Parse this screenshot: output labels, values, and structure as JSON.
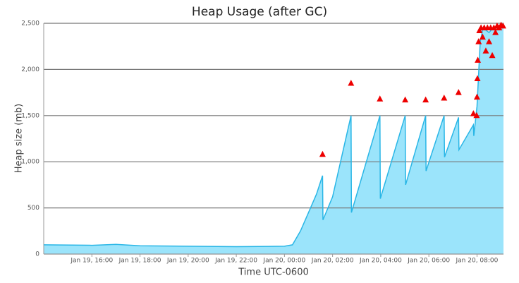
{
  "chart_data": {
    "type": "area",
    "title": "Heap Usage (after GC)",
    "y_label": "Heap size (mb)",
    "x_label": "Time UTC-0600",
    "xlim": [
      "Jan 19, 14:00",
      "Jan 20, 09:06"
    ],
    "xticks": [
      "Jan 19, 16:00",
      "Jan 19, 18:00",
      "Jan 19, 20:00",
      "Jan 19, 22:00",
      "Jan 20, 00:00",
      "Jan 20, 02:00",
      "Jan 20, 04:00",
      "Jan 20, 06:00",
      "Jan 20, 08:00"
    ],
    "ylim": [
      0,
      2500
    ],
    "yticks": [
      0,
      500,
      {
        "value": 1000,
        "label": "1,000"
      },
      {
        "value": 1500,
        "label": "1,500"
      },
      {
        "value": 2000,
        "label": "2,000"
      },
      {
        "value": 2500,
        "label": "2,500"
      }
    ],
    "grid": true,
    "series": [
      {
        "color": "#29b6e6",
        "fill": "#9be4fb",
        "x": [
          "Jan 19, 14:00",
          "Jan 19, 16:00",
          "Jan 19, 17:00",
          "Jan 19, 18:00",
          "Jan 19, 20:00",
          "Jan 19, 22:00",
          "Jan 20, 00:00",
          "Jan 20, 00:20",
          "Jan 20, 00:40",
          "Jan 20, 01:00",
          "Jan 20, 01:20",
          "Jan 20, 01:35",
          "Jan 20, 01:36",
          "Jan 20, 02:00",
          "Jan 20, 02:46",
          "Jan 20, 02:47",
          "Jan 20, 03:58",
          "Jan 20, 03:59",
          "Jan 20, 05:01",
          "Jan 20, 05:02",
          "Jan 20, 05:52",
          "Jan 20, 05:53",
          "Jan 20, 06:38",
          "Jan 20, 06:39",
          "Jan 20, 07:14",
          "Jan 20, 07:15",
          "Jan 20, 07:51",
          "Jan 20, 07:52",
          "Jan 20, 08:00",
          "Jan 20, 08:08",
          "Jan 20, 08:15",
          "Jan 20, 08:30",
          "Jan 20, 08:40",
          "Jan 20, 09:06"
        ],
        "values": [
          100,
          95,
          105,
          90,
          85,
          80,
          85,
          100,
          250,
          450,
          650,
          850,
          370,
          620,
          1500,
          450,
          1500,
          600,
          1500,
          750,
          1500,
          900,
          1500,
          1050,
          1480,
          1130,
          1400,
          1280,
          1600,
          2300,
          2450,
          2400,
          2450,
          2480
        ]
      },
      {
        "color": "#ee0000",
        "marker": "triangle",
        "x": [
          "Jan 20, 01:35",
          "Jan 20, 02:46",
          "Jan 20, 03:58",
          "Jan 20, 05:01",
          "Jan 20, 05:52",
          "Jan 20, 06:38",
          "Jan 20, 07:14",
          "Jan 20, 07:51",
          "Jan 20, 07:59",
          "Jan 20, 08:00",
          "Jan 20, 08:01",
          "Jan 20, 08:02",
          "Jan 20, 08:04",
          "Jan 20, 08:06",
          "Jan 20, 08:10",
          "Jan 20, 08:14",
          "Jan 20, 08:18",
          "Jan 20, 08:22",
          "Jan 20, 08:26",
          "Jan 20, 08:30",
          "Jan 20, 08:34",
          "Jan 20, 08:38",
          "Jan 20, 08:42",
          "Jan 20, 08:46",
          "Jan 20, 08:50",
          "Jan 20, 08:55",
          "Jan 20, 09:00",
          "Jan 20, 09:05"
        ],
        "values": [
          1080,
          1850,
          1680,
          1670,
          1670,
          1690,
          1750,
          1520,
          1500,
          1700,
          1900,
          2100,
          2300,
          2420,
          2450,
          2350,
          2450,
          2200,
          2450,
          2300,
          2450,
          2150,
          2450,
          2400,
          2470,
          2450,
          2480,
          2470
        ]
      }
    ]
  }
}
